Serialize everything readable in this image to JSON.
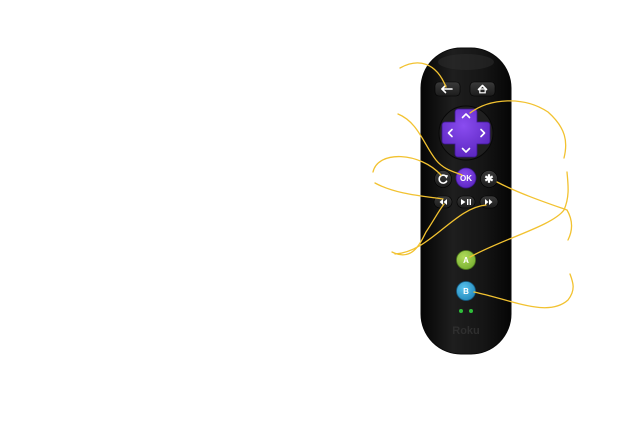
{
  "remote": {
    "ok_label": "OK",
    "star_label": "✱",
    "a_label": "A",
    "b_label": "B",
    "logo": "Roku"
  },
  "colors": {
    "body": "#161616",
    "dark_button": "#2b2b2b",
    "dpad_purple": "#6a2bd9",
    "ok_purple": "#6a2bd9",
    "button_a_green": "#8cc63f",
    "button_b_blue": "#2ea3d6",
    "led_green": "#2fbf3a",
    "callout_line": "#f2c230"
  },
  "icons": {
    "back": "back-arrow-icon",
    "home": "home-icon",
    "up": "chevron-up-icon",
    "down": "chevron-down-icon",
    "left": "chevron-left-icon",
    "right": "chevron-right-icon",
    "replay": "replay-icon",
    "rewind": "rewind-icon",
    "play_pause": "play-pause-icon",
    "fast_forward": "fast-forward-icon"
  }
}
